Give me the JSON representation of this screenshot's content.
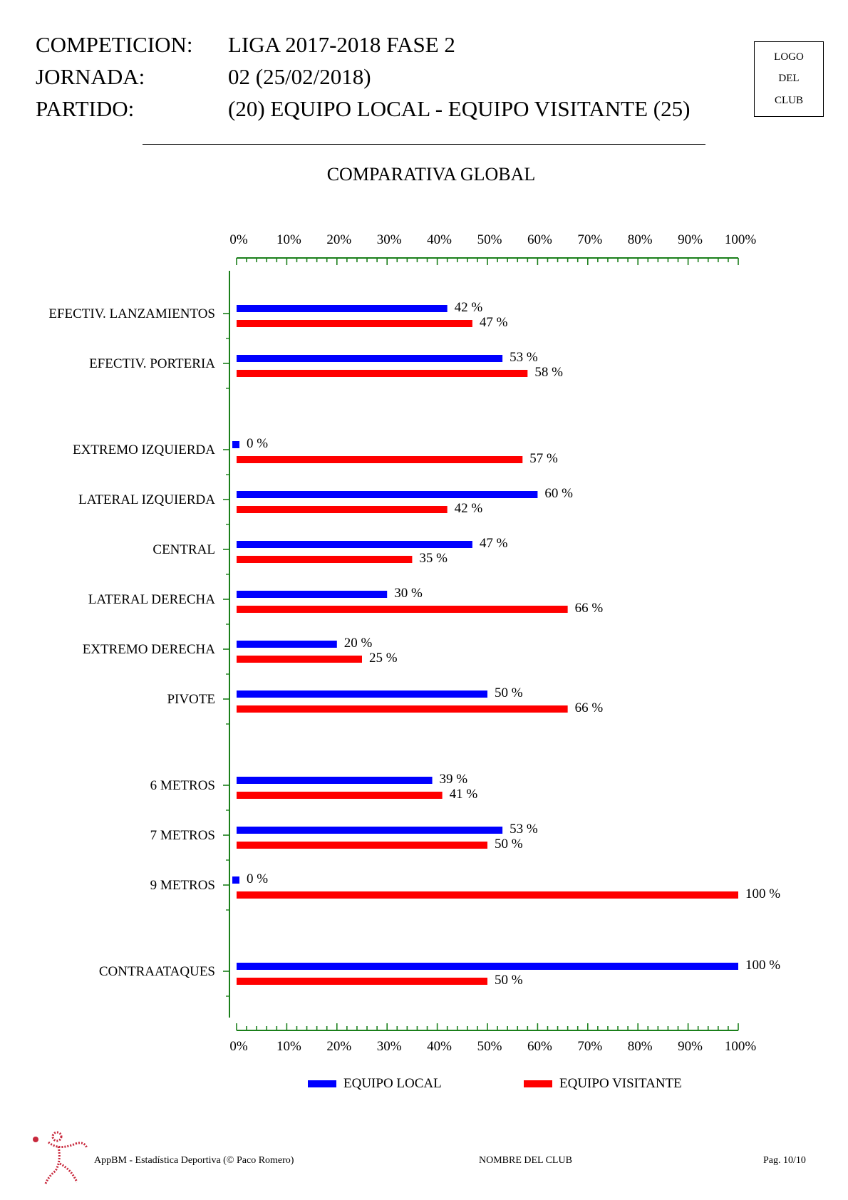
{
  "header": {
    "rows": [
      {
        "label": "COMPETICION:",
        "value": "LIGA 2017-2018 FASE 2"
      },
      {
        "label": "JORNADA:",
        "value": "02 (25/02/2018)"
      },
      {
        "label": "PARTIDO:",
        "value": "(20) EQUIPO LOCAL - EQUIPO VISITANTE (25)"
      }
    ],
    "logo_lines": [
      "LOGO",
      "DEL",
      "CLUB"
    ]
  },
  "chart_data": {
    "type": "bar",
    "orientation": "horizontal",
    "title": "COMPARATIVA GLOBAL",
    "xlim": [
      0,
      100
    ],
    "ticks": [
      "0%",
      "10%",
      "20%",
      "30%",
      "40%",
      "50%",
      "60%",
      "70%",
      "80%",
      "90%",
      "100%"
    ],
    "value_suffix": " %",
    "colors": {
      "local": "#0000ff",
      "visitante": "#ff0000",
      "axis": "#1a7f1a"
    },
    "series": [
      {
        "name": "EQUIPO LOCAL",
        "key": "local",
        "color": "#0000ff"
      },
      {
        "name": "EQUIPO VISITANTE",
        "key": "visitante",
        "color": "#ff0000"
      }
    ],
    "groups": [
      {
        "categories": [
          {
            "label": "EFECTIV. LANZAMIENTOS",
            "local": 42,
            "visitante": 47
          },
          {
            "label": "EFECTIV. PORTERIA",
            "local": 53,
            "visitante": 58
          }
        ]
      },
      {
        "categories": [
          {
            "label": "EXTREMO IZQUIERDA",
            "local": 0,
            "visitante": 57
          },
          {
            "label": "LATERAL IZQUIERDA",
            "local": 60,
            "visitante": 42
          },
          {
            "label": "CENTRAL",
            "local": 47,
            "visitante": 35
          },
          {
            "label": "LATERAL DERECHA",
            "local": 30,
            "visitante": 66
          },
          {
            "label": "EXTREMO DERECHA",
            "local": 20,
            "visitante": 25
          },
          {
            "label": "PIVOTE",
            "local": 50,
            "visitante": 66
          }
        ]
      },
      {
        "categories": [
          {
            "label": "6 METROS",
            "local": 39,
            "visitante": 41
          },
          {
            "label": "7 METROS",
            "local": 53,
            "visitante": 50
          },
          {
            "label": "9 METROS",
            "local": 0,
            "visitante": 100
          }
        ]
      },
      {
        "categories": [
          {
            "label": "CONTRAATAQUES",
            "local": 100,
            "visitante": 50
          }
        ]
      }
    ]
  },
  "legend": [
    {
      "label": "EQUIPO LOCAL",
      "color": "#0000ff"
    },
    {
      "label": "EQUIPO VISITANTE",
      "color": "#ff0000"
    }
  ],
  "footer": {
    "left": "AppBM - Estadística Deportiva (© Paco Romero)",
    "center": "NOMBRE DEL CLUB",
    "right": "Pag. 10/10",
    "logo_icon": "handball-player-icon"
  }
}
